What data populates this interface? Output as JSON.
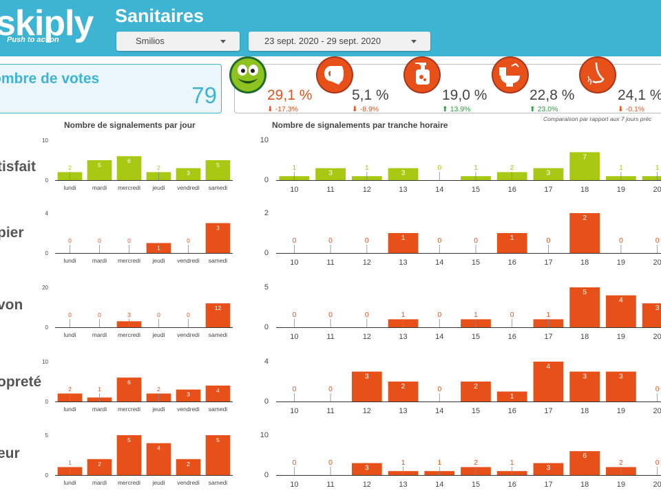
{
  "header": {
    "logo_text": "skiply",
    "logo_tagline": "Push to action",
    "title": "Sanitaires",
    "site_dropdown": "Smilios",
    "date_dropdown": "23 sept. 2020 - 29 sept. 2020"
  },
  "votes": {
    "label": "ombre de votes",
    "value": "79"
  },
  "kpis": [
    {
      "icon": "smiley-icon",
      "color": "#8dc21f",
      "value": "29,1 %",
      "value_color": "#e8501a",
      "delta": "⬇ -17.3%",
      "delta_color": "#e8501a"
    },
    {
      "icon": "toilet-paper-icon",
      "color": "#e8501a",
      "value": "5,1 %",
      "value_color": "#444444",
      "delta": "⬇ -8.9%",
      "delta_color": "#e8501a"
    },
    {
      "icon": "soap-dispenser-icon",
      "color": "#e8501a",
      "value": "19,0 %",
      "value_color": "#444444",
      "delta": "⬆ 13.9%",
      "delta_color": "#2e9e3e"
    },
    {
      "icon": "toilet-icon",
      "color": "#e8501a",
      "value": "22,8 %",
      "value_color": "#444444",
      "delta": "⬆ 23.0%",
      "delta_color": "#2e9e3e"
    },
    {
      "icon": "nose-icon",
      "color": "#e8501a",
      "value": "24,1 %",
      "value_color": "#444444",
      "delta": "⬇ -0.1%",
      "delta_color": "#e8501a"
    }
  ],
  "kpi_note": "Comparaison par rapport aux 7 jours préc",
  "chart_titles": {
    "daily": "Nombre de signalements par jour",
    "hourly": "Nombre de signalements par tranche horaire"
  },
  "colors": {
    "green": "#a8c913",
    "orange": "#e8501a",
    "header": "#3cb4d2"
  },
  "chart_data": [
    {
      "type": "bar",
      "row_label": "tisfait",
      "color": "#a8c913",
      "daily": {
        "categories": [
          "lundi",
          "mardi",
          "mercredi",
          "jeudi",
          "vendredi",
          "samedi"
        ],
        "values": [
          2,
          5,
          6,
          2,
          3,
          5
        ],
        "ylim": [
          0,
          10
        ]
      },
      "hourly": {
        "categories": [
          "10",
          "11",
          "12",
          "13",
          "14",
          "15",
          "16",
          "17",
          "18",
          "19",
          "20"
        ],
        "values": [
          1,
          3,
          1,
          3,
          0,
          1,
          2,
          3,
          7,
          1,
          1
        ],
        "ylim": [
          0,
          10
        ]
      }
    },
    {
      "type": "bar",
      "row_label": "pier",
      "color": "#e8501a",
      "daily": {
        "categories": [
          "lundi",
          "mardi",
          "mercredi",
          "jeudi",
          "vendredi",
          "samedi"
        ],
        "values": [
          0,
          0,
          0,
          1,
          0,
          3
        ],
        "ylim": [
          0,
          4
        ]
      },
      "hourly": {
        "categories": [
          "10",
          "11",
          "12",
          "13",
          "14",
          "15",
          "16",
          "17",
          "18",
          "19",
          "20"
        ],
        "values": [
          0,
          0,
          0,
          1,
          0,
          0,
          1,
          0,
          2,
          0,
          0
        ],
        "ylim": [
          0,
          2
        ]
      }
    },
    {
      "type": "bar",
      "row_label": "von",
      "color": "#e8501a",
      "daily": {
        "categories": [
          "lundi",
          "mardi",
          "mercredi",
          "jeudi",
          "vendredi",
          "samedi"
        ],
        "values": [
          0,
          0,
          3,
          0,
          0,
          12
        ],
        "ylim": [
          0,
          20
        ]
      },
      "hourly": {
        "categories": [
          "10",
          "11",
          "12",
          "13",
          "14",
          "15",
          "16",
          "17",
          "18",
          "19",
          "20"
        ],
        "values": [
          0,
          0,
          0,
          1,
          0,
          1,
          0,
          1,
          5,
          4,
          3
        ],
        "ylim": [
          0,
          5
        ]
      }
    },
    {
      "type": "bar",
      "row_label": "opreté",
      "color": "#e8501a",
      "daily": {
        "categories": [
          "lundi",
          "mardi",
          "mercredi",
          "jeudi",
          "vendredi",
          "samedi"
        ],
        "values": [
          2,
          1,
          6,
          2,
          3,
          4
        ],
        "ylim": [
          0,
          10
        ]
      },
      "hourly": {
        "categories": [
          "10",
          "11",
          "12",
          "13",
          "14",
          "15",
          "16",
          "17",
          "18",
          "19",
          "20"
        ],
        "values": [
          0,
          0,
          3,
          2,
          0,
          2,
          1,
          4,
          3,
          3,
          0
        ],
        "ylim": [
          0,
          4
        ]
      }
    },
    {
      "type": "bar",
      "row_label": "eur",
      "color": "#e8501a",
      "daily": {
        "categories": [
          "lundi",
          "mardi",
          "mercredi",
          "jeudi",
          "vendredi",
          "samedi"
        ],
        "values": [
          1,
          2,
          5,
          4,
          2,
          5
        ],
        "ylim": [
          0,
          5
        ]
      },
      "hourly": {
        "categories": [
          "10",
          "11",
          "12",
          "13",
          "14",
          "15",
          "16",
          "17",
          "18",
          "19",
          "20"
        ],
        "values": [
          0,
          0,
          3,
          1,
          1,
          2,
          1,
          3,
          6,
          2,
          0
        ],
        "ylim": [
          0,
          10
        ]
      }
    }
  ]
}
